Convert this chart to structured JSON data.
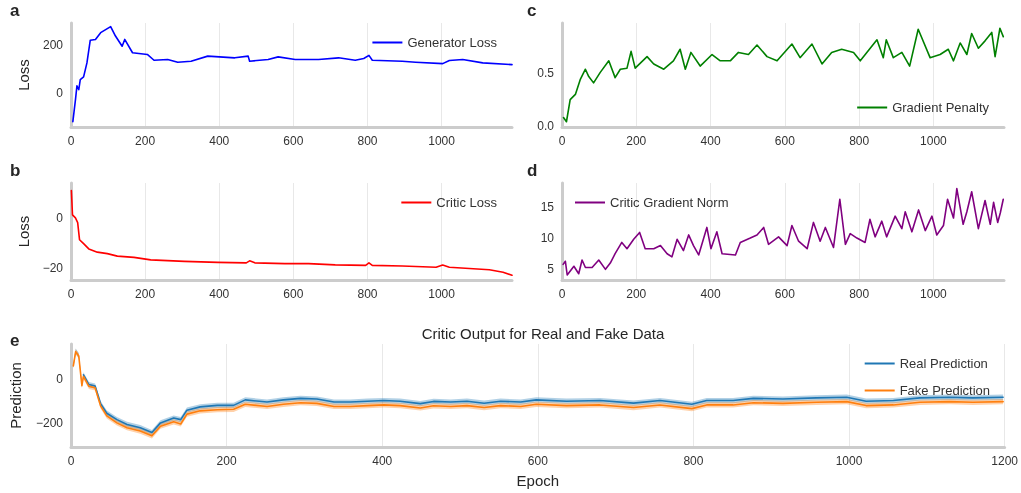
{
  "chart_data": [
    {
      "type": "line",
      "ylabel": "Loss",
      "annotations": [
        "a"
      ],
      "grid": "x",
      "legend": "top right",
      "xlim": [
        0,
        1190
      ],
      "xticks": [
        0,
        200,
        400,
        600,
        800,
        1000
      ],
      "ylim": [
        -140,
        290
      ],
      "yticks": [
        0,
        200
      ],
      "x": [
        5,
        12,
        16,
        21,
        25,
        34,
        43,
        52,
        66,
        80,
        107,
        120,
        138,
        145,
        166,
        206,
        224,
        261,
        288,
        324,
        369,
        442,
        478,
        482,
        532,
        559,
        605,
        668,
        722,
        767,
        790,
        804,
        813,
        894,
        930,
        1003,
        1021,
        1057,
        1111,
        1190
      ],
      "series": [
        {
          "name": "Generator Loss",
          "color": "#0000ff",
          "values": [
            -118,
            -28,
            30,
            14,
            56,
            67,
            125,
            219,
            222,
            250,
            275,
            236,
            194,
            222,
            167,
            160,
            136,
            139,
            128,
            132,
            153,
            146,
            153,
            132,
            139,
            150,
            139,
            139,
            146,
            136,
            143,
            156,
            136,
            132,
            128,
            122,
            135,
            139,
            125,
            118
          ]
        }
      ]
    },
    {
      "type": "line",
      "ylabel": "Loss",
      "annotations": [
        "b"
      ],
      "grid": "x",
      "legend": "top right",
      "xlim": [
        0,
        1190
      ],
      "xticks": [
        0,
        200,
        400,
        600,
        800,
        1000
      ],
      "ylim": [
        -25,
        14
      ],
      "yticks": [
        {
          "value": -20,
          "label": "−20"
        },
        0
      ],
      "x": [
        1,
        4,
        12,
        18,
        23,
        34,
        48,
        71,
        98,
        125,
        170,
        215,
        306,
        396,
        473,
        482,
        496,
        577,
        641,
        713,
        795,
        804,
        813,
        894,
        985,
        1003,
        1021,
        1075,
        1129,
        1166,
        1190
      ],
      "series": [
        {
          "name": "Critic Loss",
          "color": "#ff0000",
          "values": [
            11,
            1.2,
            0,
            -1.9,
            -8.8,
            -10.4,
            -12.5,
            -13.8,
            -14.4,
            -15.4,
            -15.9,
            -16.9,
            -17.5,
            -17.9,
            -18.1,
            -17.3,
            -18.1,
            -18.4,
            -18.4,
            -18.9,
            -19.1,
            -18.1,
            -19.1,
            -19.4,
            -19.9,
            -19,
            -19.9,
            -20.4,
            -20.9,
            -21.9,
            -23.1
          ]
        }
      ]
    },
    {
      "type": "line",
      "annotations": [
        "c"
      ],
      "grid": "x",
      "legend": "bottom right",
      "xlim": [
        0,
        1190
      ],
      "xticks": [
        0,
        200,
        400,
        600,
        800,
        1000
      ],
      "ylim": [
        -0.01,
        0.98
      ],
      "yticks": [
        {
          "value": 0,
          "label": "0.0"
        },
        0.5
      ],
      "x": [
        4,
        12,
        22,
        36,
        49,
        63,
        72,
        85,
        103,
        126,
        143,
        157,
        175,
        186,
        197,
        229,
        247,
        274,
        300,
        318,
        332,
        347,
        372,
        404,
        426,
        453,
        475,
        502,
        525,
        552,
        579,
        619,
        641,
        673,
        700,
        726,
        753,
        785,
        803,
        848,
        865,
        873,
        892,
        915,
        936,
        959,
        991,
        1018,
        1040,
        1054,
        1072,
        1090,
        1103,
        1121,
        1139,
        1157,
        1166,
        1179,
        1188
      ],
      "series": [
        {
          "name": "Gradient Penalty",
          "color": "#008000",
          "values": [
            0.08,
            0.04,
            0.25,
            0.3,
            0.44,
            0.54,
            0.47,
            0.41,
            0.51,
            0.62,
            0.46,
            0.54,
            0.55,
            0.71,
            0.55,
            0.66,
            0.59,
            0.54,
            0.62,
            0.73,
            0.54,
            0.7,
            0.57,
            0.68,
            0.62,
            0.62,
            0.7,
            0.68,
            0.77,
            0.66,
            0.62,
            0.78,
            0.65,
            0.78,
            0.59,
            0.7,
            0.73,
            0.7,
            0.62,
            0.82,
            0.65,
            0.82,
            0.65,
            0.7,
            0.57,
            0.92,
            0.65,
            0.68,
            0.73,
            0.62,
            0.79,
            0.68,
            0.88,
            0.74,
            0.81,
            0.89,
            0.66,
            0.93,
            0.85
          ]
        }
      ]
    },
    {
      "type": "line",
      "annotations": [
        "d"
      ],
      "grid": "x",
      "legend": "top left",
      "xlim": [
        0,
        1190
      ],
      "xticks": [
        0,
        200,
        400,
        600,
        800,
        1000
      ],
      "ylim": [
        3.3,
        18.8
      ],
      "yticks": [
        5,
        10,
        15
      ],
      "x": [
        3,
        9,
        14,
        32,
        45,
        54,
        63,
        81,
        99,
        117,
        130,
        143,
        161,
        175,
        193,
        209,
        224,
        247,
        265,
        283,
        296,
        310,
        327,
        341,
        354,
        368,
        390,
        401,
        417,
        431,
        467,
        480,
        507,
        525,
        543,
        556,
        583,
        606,
        619,
        637,
        660,
        677,
        695,
        709,
        731,
        748,
        763,
        776,
        794,
        816,
        829,
        843,
        861,
        874,
        897,
        915,
        924,
        942,
        960,
        978,
        996,
        1009,
        1027,
        1038,
        1054,
        1063,
        1080,
        1090,
        1103,
        1121,
        1139,
        1153,
        1162,
        1173,
        1180,
        1188
      ],
      "series": [
        {
          "name": "Critic Gradient Norm",
          "color": "#800080",
          "values": [
            5.8,
            6.3,
            4.1,
            5.5,
            4.3,
            6.5,
            5.3,
            5.3,
            6.5,
            5,
            6,
            7.5,
            9.3,
            8.3,
            9.8,
            10.9,
            8.3,
            8.3,
            8.8,
            7.5,
            7,
            9.8,
            8,
            10.5,
            8.8,
            7.3,
            11.7,
            8.3,
            11,
            7.5,
            7.3,
            9.3,
            10,
            10.5,
            11.7,
            9,
            10.2,
            8.8,
            12,
            9.5,
            8.3,
            12.5,
            9.5,
            11.7,
            8.5,
            16.2,
            9,
            10.7,
            10,
            9.3,
            13,
            10.2,
            12.7,
            10.2,
            13.5,
            11.5,
            14.2,
            11,
            14.5,
            11.2,
            13.5,
            10.5,
            12,
            16.2,
            13.2,
            17.9,
            12.2,
            14.2,
            17.4,
            11.5,
            16,
            12.2,
            15.7,
            12.5,
            14,
            16.2
          ]
        }
      ]
    },
    {
      "type": "line",
      "title": "Critic Output for Real and Fake Data",
      "xlabel": "Epoch",
      "ylabel": "Prediction",
      "annotations": [
        "e"
      ],
      "grid": "x",
      "legend": "top right",
      "xlim": [
        0,
        1200
      ],
      "xticks": [
        0,
        200,
        400,
        600,
        800,
        1000,
        1200
      ],
      "ylim": [
        -310,
        160
      ],
      "yticks": [
        {
          "value": -200,
          "label": "−200"
        },
        0
      ],
      "x": [
        3,
        6,
        10,
        14,
        16,
        23,
        31,
        38,
        46,
        59,
        72,
        89,
        104,
        115,
        132,
        141,
        149,
        166,
        188,
        209,
        224,
        252,
        273,
        295,
        316,
        338,
        359,
        381,
        402,
        423,
        449,
        466,
        488,
        509,
        531,
        552,
        578,
        598,
        637,
        680,
        723,
        757,
        798,
        817,
        851,
        877,
        915,
        958,
        997,
        1022,
        1057,
        1091,
        1129,
        1159,
        1198
      ],
      "series": [
        {
          "name": "Real Prediction",
          "color": "#1f77b4",
          "values": [
            null,
            null,
            null,
            null,
            19,
            -25,
            -32,
            -112,
            -156,
            -185,
            -207,
            -222,
            -244,
            -200,
            -178,
            -185,
            -142,
            -127,
            -120,
            -120,
            -95,
            -105,
            -95,
            -88,
            -91,
            -105,
            -105,
            -101,
            -98,
            -101,
            -112,
            -102,
            -105,
            -101,
            -110,
            -101,
            -105,
            -95,
            -101,
            -98,
            -110,
            -98,
            -115,
            -98,
            -98,
            -88,
            -91,
            -86,
            -83,
            -101,
            -98,
            -86,
            -83,
            -86,
            -83
          ],
          "upper": [
            75,
            140,
            119,
            -13,
            31,
            -13,
            -20,
            -100,
            -144,
            -173,
            -195,
            -210,
            -232,
            -188,
            -166,
            -173,
            -130,
            -115,
            -108,
            -108,
            -83,
            -93,
            -83,
            -76,
            -79,
            -93,
            -93,
            -89,
            -86,
            -89,
            -100,
            -90,
            -93,
            -89,
            -98,
            -89,
            -93,
            -83,
            -89,
            -86,
            -98,
            -86,
            -103,
            -86,
            -86,
            -76,
            -79,
            -74,
            -71,
            -89,
            -86,
            -74,
            -71,
            -74,
            -71
          ],
          "lower": [
            51,
            116,
            95,
            -37,
            7,
            -37,
            -44,
            -124,
            -168,
            -197,
            -219,
            -234,
            -256,
            -212,
            -190,
            -197,
            -154,
            -139,
            -132,
            -132,
            -107,
            -117,
            -107,
            -100,
            -103,
            -117,
            -117,
            -113,
            -110,
            -113,
            -124,
            -114,
            -117,
            -113,
            -122,
            -113,
            -117,
            -107,
            -113,
            -110,
            -122,
            -110,
            -127,
            -110,
            -110,
            -100,
            -103,
            -98,
            -95,
            -113,
            -110,
            -98,
            -95,
            -98,
            -95
          ]
        },
        {
          "name": "Fake Prediction",
          "color": "#ff7f0e",
          "values": [
            60,
            125,
            105,
            -30,
            12,
            -33,
            -40,
            -122,
            -168,
            -200,
            -222,
            -237,
            -259,
            -215,
            -195,
            -205,
            -160,
            -145,
            -140,
            -138,
            -115,
            -125,
            -115,
            -108,
            -111,
            -125,
            -125,
            -121,
            -118,
            -121,
            -132,
            -122,
            -125,
            -121,
            -130,
            -121,
            -125,
            -115,
            -121,
            -118,
            -130,
            -118,
            -135,
            -118,
            -118,
            -108,
            -111,
            -106,
            -103,
            -121,
            -118,
            -106,
            -103,
            -106,
            -103
          ],
          "upper": [
            72,
            137,
            117,
            -18,
            24,
            -21,
            -28,
            -110,
            -156,
            -188,
            -210,
            -225,
            -247,
            -203,
            -183,
            -193,
            -148,
            -133,
            -128,
            -126,
            -103,
            -113,
            -103,
            -96,
            -99,
            -113,
            -113,
            -109,
            -106,
            -109,
            -120,
            -110,
            -113,
            -109,
            -118,
            -109,
            -113,
            -103,
            -109,
            -106,
            -118,
            -106,
            -123,
            -106,
            -106,
            -96,
            -99,
            -94,
            -91,
            -109,
            -106,
            -94,
            -91,
            -94,
            -91
          ],
          "lower": [
            48,
            113,
            93,
            -42,
            0,
            -45,
            -52,
            -134,
            -180,
            -212,
            -234,
            -249,
            -271,
            -227,
            -207,
            -217,
            -172,
            -157,
            -152,
            -150,
            -127,
            -137,
            -127,
            -120,
            -123,
            -137,
            -137,
            -133,
            -130,
            -133,
            -144,
            -134,
            -137,
            -133,
            -142,
            -133,
            -137,
            -127,
            -133,
            -130,
            -142,
            -130,
            -147,
            -130,
            -130,
            -120,
            -123,
            -118,
            -115,
            -133,
            -130,
            -118,
            -115,
            -118,
            -115
          ]
        }
      ]
    }
  ]
}
